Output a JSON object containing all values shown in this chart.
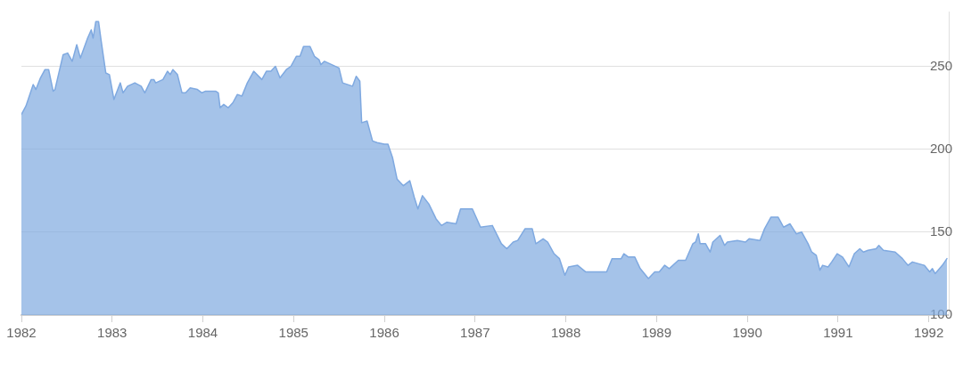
{
  "chart_data": {
    "type": "area",
    "color": "#7fa9e0",
    "marker": "none",
    "line_style": "solid",
    "grid": "y",
    "xlim": [
      1982,
      1992.22
    ],
    "xticks": [
      1982,
      1983,
      1984,
      1985,
      1986,
      1987,
      1988,
      1989,
      1990,
      1991,
      1992
    ],
    "ylim": [
      100,
      283
    ],
    "yticks": [
      100,
      150,
      200,
      250
    ],
    "x": [
      1982.0,
      1982.05,
      1982.13,
      1982.16,
      1982.21,
      1982.26,
      1982.3,
      1982.35,
      1982.37,
      1982.46,
      1982.51,
      1982.56,
      1982.61,
      1982.65,
      1982.73,
      1982.77,
      1982.79,
      1982.82,
      1982.85,
      1982.88,
      1982.93,
      1982.97,
      1983.02,
      1983.04,
      1983.09,
      1983.12,
      1983.17,
      1983.25,
      1983.32,
      1983.36,
      1983.43,
      1983.46,
      1983.48,
      1983.56,
      1983.61,
      1983.64,
      1983.67,
      1983.72,
      1983.77,
      1983.81,
      1983.86,
      1983.94,
      1983.99,
      1984.03,
      1984.14,
      1984.17,
      1984.19,
      1984.23,
      1984.28,
      1984.33,
      1984.38,
      1984.43,
      1984.49,
      1984.56,
      1984.65,
      1984.7,
      1984.75,
      1984.8,
      1984.85,
      1984.92,
      1984.97,
      1985.03,
      1985.07,
      1985.11,
      1985.18,
      1985.23,
      1985.28,
      1985.3,
      1985.34,
      1985.42,
      1985.5,
      1985.54,
      1985.65,
      1985.69,
      1985.73,
      1985.75,
      1985.81,
      1985.87,
      1985.92,
      1986.0,
      1986.04,
      1986.09,
      1986.14,
      1986.21,
      1986.28,
      1986.33,
      1986.37,
      1986.42,
      1986.49,
      1986.57,
      1986.63,
      1986.69,
      1986.79,
      1986.84,
      1986.97,
      1987.06,
      1987.19,
      1987.29,
      1987.35,
      1987.42,
      1987.47,
      1987.55,
      1987.63,
      1987.67,
      1987.75,
      1987.8,
      1987.87,
      1987.93,
      1987.99,
      1988.03,
      1988.13,
      1988.22,
      1988.27,
      1988.45,
      1988.51,
      1988.61,
      1988.64,
      1988.69,
      1988.76,
      1988.82,
      1988.91,
      1988.98,
      1989.03,
      1989.09,
      1989.14,
      1989.24,
      1989.32,
      1989.4,
      1989.43,
      1989.46,
      1989.48,
      1989.54,
      1989.59,
      1989.62,
      1989.7,
      1989.75,
      1989.78,
      1989.89,
      1989.98,
      1990.02,
      1990.14,
      1990.19,
      1990.26,
      1990.34,
      1990.4,
      1990.47,
      1990.54,
      1990.6,
      1990.67,
      1990.71,
      1990.76,
      1990.8,
      1990.83,
      1990.89,
      1990.93,
      1990.99,
      1991.05,
      1991.12,
      1991.18,
      1991.24,
      1991.28,
      1991.33,
      1991.42,
      1991.45,
      1991.5,
      1991.63,
      1991.71,
      1991.77,
      1991.82,
      1991.95,
      1992.01,
      1992.04,
      1992.07,
      1992.15,
      1992.2
    ],
    "values": [
      221,
      226,
      239,
      236,
      243,
      248,
      248,
      235,
      236,
      257,
      258,
      253,
      263,
      255,
      267,
      272,
      267,
      277,
      277,
      265,
      246,
      245,
      230,
      233,
      240,
      234,
      238,
      240,
      238,
      234,
      242,
      242,
      240,
      242,
      247,
      245,
      248,
      245,
      234,
      234,
      237,
      236,
      234,
      235,
      235,
      234,
      225,
      227,
      225,
      228,
      233,
      232,
      240,
      247,
      242,
      247,
      247,
      250,
      243,
      248,
      250,
      256,
      256,
      262,
      262,
      256,
      254,
      251,
      253,
      251,
      249,
      240,
      238,
      244,
      241,
      216,
      217,
      205,
      204,
      203,
      203,
      195,
      182,
      178,
      181,
      171,
      164,
      172,
      167,
      158,
      154,
      156,
      155,
      164,
      164,
      153,
      154,
      143,
      140,
      144,
      145,
      152,
      152,
      143,
      146,
      144,
      137,
      134,
      124,
      129,
      130,
      126,
      126,
      126,
      134,
      134,
      137,
      135,
      135,
      128,
      122,
      126,
      126,
      130,
      128,
      133,
      133,
      143,
      144,
      149,
      143,
      143,
      138,
      144,
      148,
      142,
      144,
      145,
      144,
      146,
      145,
      152,
      159,
      159,
      153,
      155,
      149,
      150,
      143,
      138,
      136,
      127,
      130,
      129,
      132,
      137,
      135,
      129,
      137,
      140,
      138,
      139,
      140,
      142,
      139,
      138,
      134,
      130,
      132,
      130,
      126,
      128,
      125,
      130,
      134
    ]
  }
}
